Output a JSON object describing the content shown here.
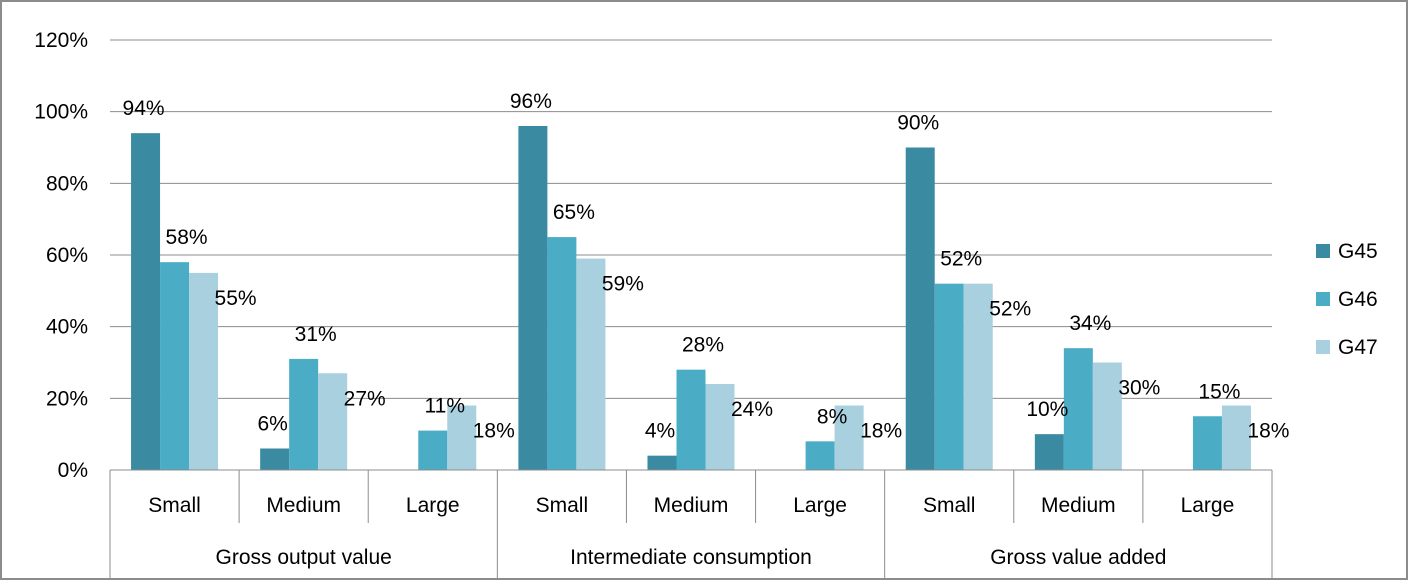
{
  "chart_data": {
    "type": "bar",
    "groups": [
      {
        "label": "Gross output value",
        "categories": [
          "Small",
          "Medium",
          "Large"
        ]
      },
      {
        "label": "Intermediate consumption",
        "categories": [
          "Small",
          "Medium",
          "Large"
        ]
      },
      {
        "label": "Gross value added",
        "categories": [
          "Small",
          "Medium",
          "Large"
        ]
      }
    ],
    "series": [
      {
        "name": "G45",
        "color": "#3a8aa2",
        "values": [
          94,
          6,
          null,
          96,
          4,
          null,
          90,
          10,
          null
        ],
        "labels": [
          "94%",
          "6%",
          "",
          "96%",
          "4%",
          "",
          "90%",
          "10%",
          ""
        ]
      },
      {
        "name": "G46",
        "color": "#4bacc6",
        "values": [
          58,
          31,
          11,
          65,
          28,
          8,
          52,
          34,
          15
        ],
        "labels": [
          "58%",
          "31%",
          "11%",
          "65%",
          "28%",
          "8%",
          "52%",
          "34%",
          "15%"
        ]
      },
      {
        "name": "G47",
        "color": "#a9d0de",
        "values": [
          55,
          27,
          18,
          59,
          24,
          18,
          52,
          30,
          18
        ],
        "labels": [
          "55%",
          "27%",
          "18%",
          "59%",
          "24%",
          "18%",
          "52%",
          "30%",
          "18%"
        ]
      }
    ],
    "ylim": [
      0,
      120
    ],
    "yticks": [
      0,
      20,
      40,
      60,
      80,
      100,
      120
    ],
    "ytick_labels": [
      "0%",
      "20%",
      "40%",
      "60%",
      "80%",
      "100%",
      "120%"
    ],
    "grid": true,
    "legend": "right"
  }
}
